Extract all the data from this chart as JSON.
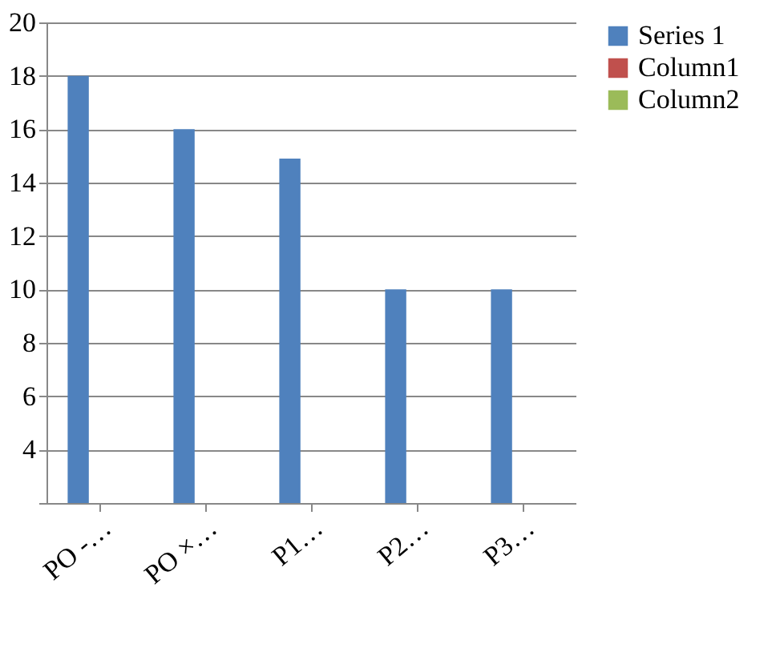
{
  "chart_data": {
    "type": "bar",
    "categories": [
      "PO -…",
      "PO ×…",
      "P1…",
      "P2…",
      "P3…"
    ],
    "series": [
      {
        "name": "Series 1",
        "color": "#4f81bd",
        "values": [
          18,
          16,
          14.9,
          10,
          10
        ]
      },
      {
        "name": "Column1",
        "color": "#c0504d",
        "values": [
          null,
          null,
          null,
          null,
          null
        ]
      },
      {
        "name": "Column2",
        "color": "#9bbb59",
        "values": [
          null,
          null,
          null,
          null,
          null
        ]
      }
    ],
    "ylim": [
      2,
      20
    ],
    "yticks": [
      {
        "value": 2,
        "label": null
      },
      4,
      6,
      8,
      10,
      12,
      14,
      16,
      18,
      20
    ],
    "grid": "y",
    "legend": "right"
  }
}
